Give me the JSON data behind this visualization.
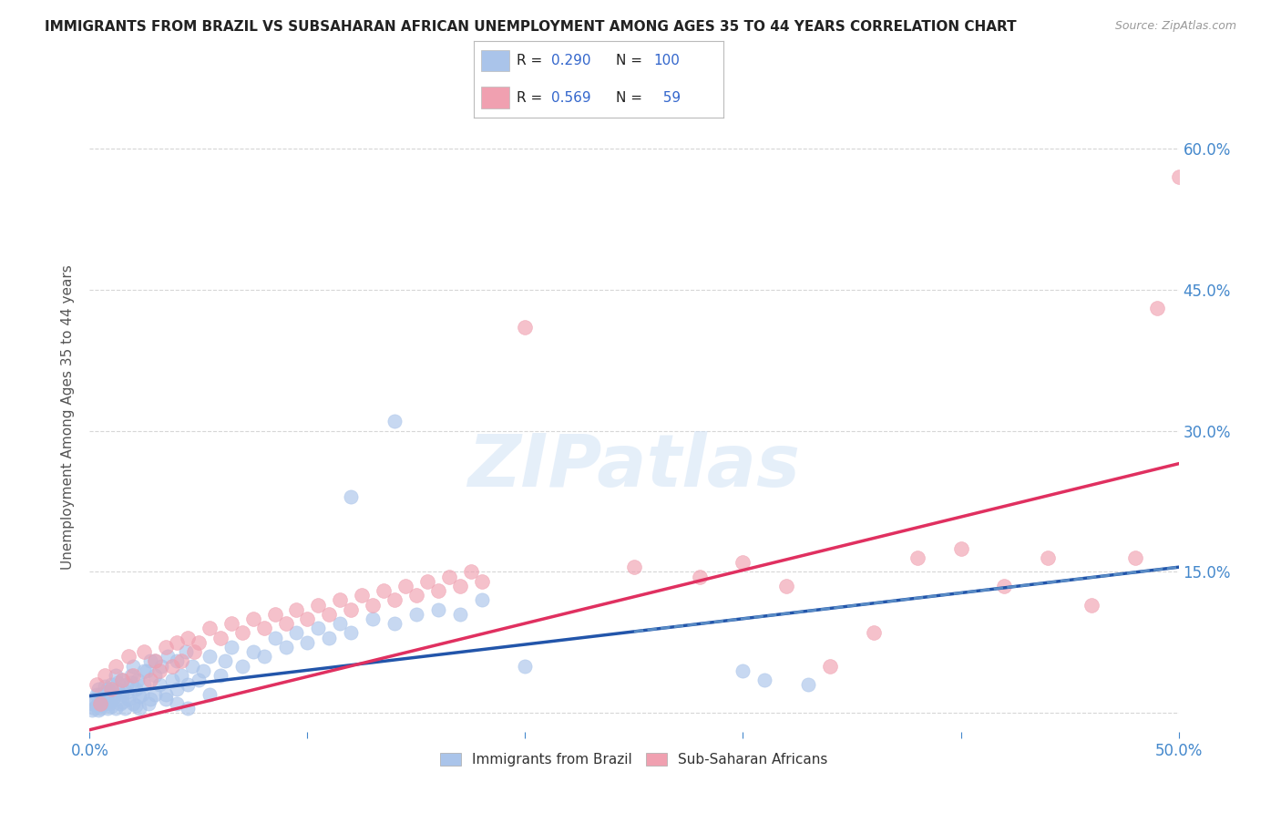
{
  "title": "IMMIGRANTS FROM BRAZIL VS SUBSAHARAN AFRICAN UNEMPLOYMENT AMONG AGES 35 TO 44 YEARS CORRELATION CHART",
  "source": "Source: ZipAtlas.com",
  "ylabel_label": "Unemployment Among Ages 35 to 44 years",
  "xlim": [
    0.0,
    0.5
  ],
  "ylim": [
    -0.02,
    0.65
  ],
  "ylim_display": [
    0.0,
    0.65
  ],
  "xticks": [
    0.0,
    0.1,
    0.2,
    0.3,
    0.4,
    0.5
  ],
  "xticklabels": [
    "0.0%",
    "",
    "",
    "",
    "",
    "50.0%"
  ],
  "yticks": [
    0.0,
    0.15,
    0.3,
    0.45,
    0.6
  ],
  "yticklabels": [
    "",
    "15.0%",
    "30.0%",
    "45.0%",
    "60.0%"
  ],
  "watermark": "ZIPatlas",
  "brazil_color": "#aac4ea",
  "subsaharan_color": "#f0a0b0",
  "brazil_line_color": "#2255aa",
  "subsaharan_line_color": "#e03060",
  "background_color": "#ffffff",
  "grid_color": "#cccccc",
  "title_color": "#222222",
  "title_fontsize": 11,
  "axis_label_color": "#555555",
  "tick_color": "#4488cc",
  "brazil_line": {
    "x0": 0.0,
    "y0": 0.018,
    "x1": 0.5,
    "y1": 0.155
  },
  "subsaharan_line": {
    "x0": 0.0,
    "y0": -0.018,
    "x1": 0.5,
    "y1": 0.265
  },
  "brazil_scatter": [
    [
      0.002,
      0.005
    ],
    [
      0.003,
      0.008
    ],
    [
      0.004,
      0.003
    ],
    [
      0.004,
      0.01
    ],
    [
      0.005,
      0.005
    ],
    [
      0.005,
      0.02
    ],
    [
      0.006,
      0.01
    ],
    [
      0.007,
      0.015
    ],
    [
      0.008,
      0.005
    ],
    [
      0.008,
      0.025
    ],
    [
      0.009,
      0.01
    ],
    [
      0.01,
      0.015
    ],
    [
      0.01,
      0.03
    ],
    [
      0.011,
      0.02
    ],
    [
      0.012,
      0.005
    ],
    [
      0.012,
      0.04
    ],
    [
      0.013,
      0.025
    ],
    [
      0.014,
      0.01
    ],
    [
      0.015,
      0.02
    ],
    [
      0.015,
      0.035
    ],
    [
      0.016,
      0.005
    ],
    [
      0.017,
      0.03
    ],
    [
      0.018,
      0.015
    ],
    [
      0.019,
      0.04
    ],
    [
      0.02,
      0.01
    ],
    [
      0.02,
      0.05
    ],
    [
      0.021,
      0.025
    ],
    [
      0.022,
      0.035
    ],
    [
      0.023,
      0.005
    ],
    [
      0.024,
      0.02
    ],
    [
      0.025,
      0.03
    ],
    [
      0.026,
      0.045
    ],
    [
      0.027,
      0.01
    ],
    [
      0.028,
      0.055
    ],
    [
      0.03,
      0.02
    ],
    [
      0.03,
      0.04
    ],
    [
      0.032,
      0.03
    ],
    [
      0.033,
      0.05
    ],
    [
      0.035,
      0.02
    ],
    [
      0.036,
      0.06
    ],
    [
      0.038,
      0.035
    ],
    [
      0.04,
      0.025
    ],
    [
      0.04,
      0.055
    ],
    [
      0.042,
      0.04
    ],
    [
      0.044,
      0.065
    ],
    [
      0.045,
      0.03
    ],
    [
      0.047,
      0.05
    ],
    [
      0.05,
      0.035
    ],
    [
      0.052,
      0.045
    ],
    [
      0.055,
      0.06
    ],
    [
      0.06,
      0.04
    ],
    [
      0.062,
      0.055
    ],
    [
      0.065,
      0.07
    ],
    [
      0.07,
      0.05
    ],
    [
      0.075,
      0.065
    ],
    [
      0.08,
      0.06
    ],
    [
      0.085,
      0.08
    ],
    [
      0.09,
      0.07
    ],
    [
      0.095,
      0.085
    ],
    [
      0.1,
      0.075
    ],
    [
      0.105,
      0.09
    ],
    [
      0.11,
      0.08
    ],
    [
      0.115,
      0.095
    ],
    [
      0.12,
      0.085
    ],
    [
      0.13,
      0.1
    ],
    [
      0.14,
      0.095
    ],
    [
      0.15,
      0.105
    ],
    [
      0.16,
      0.11
    ],
    [
      0.17,
      0.105
    ],
    [
      0.18,
      0.12
    ],
    [
      0.001,
      0.003
    ],
    [
      0.001,
      0.01
    ],
    [
      0.002,
      0.015
    ],
    [
      0.003,
      0.02
    ],
    [
      0.004,
      0.025
    ],
    [
      0.005,
      0.008
    ],
    [
      0.006,
      0.018
    ],
    [
      0.007,
      0.028
    ],
    [
      0.008,
      0.012
    ],
    [
      0.009,
      0.022
    ],
    [
      0.01,
      0.007
    ],
    [
      0.011,
      0.017
    ],
    [
      0.013,
      0.032
    ],
    [
      0.015,
      0.012
    ],
    [
      0.017,
      0.022
    ],
    [
      0.019,
      0.032
    ],
    [
      0.021,
      0.008
    ],
    [
      0.023,
      0.018
    ],
    [
      0.025,
      0.045
    ],
    [
      0.028,
      0.015
    ],
    [
      0.03,
      0.055
    ],
    [
      0.035,
      0.015
    ],
    [
      0.04,
      0.01
    ],
    [
      0.045,
      0.005
    ],
    [
      0.055,
      0.02
    ],
    [
      0.14,
      0.31
    ],
    [
      0.12,
      0.23
    ],
    [
      0.3,
      0.045
    ],
    [
      0.31,
      0.035
    ],
    [
      0.33,
      0.03
    ],
    [
      0.2,
      0.05
    ]
  ],
  "subsaharan_scatter": [
    [
      0.003,
      0.03
    ],
    [
      0.005,
      0.01
    ],
    [
      0.007,
      0.04
    ],
    [
      0.01,
      0.025
    ],
    [
      0.012,
      0.05
    ],
    [
      0.015,
      0.035
    ],
    [
      0.018,
      0.06
    ],
    [
      0.02,
      0.04
    ],
    [
      0.025,
      0.065
    ],
    [
      0.028,
      0.035
    ],
    [
      0.03,
      0.055
    ],
    [
      0.032,
      0.045
    ],
    [
      0.035,
      0.07
    ],
    [
      0.038,
      0.05
    ],
    [
      0.04,
      0.075
    ],
    [
      0.042,
      0.055
    ],
    [
      0.045,
      0.08
    ],
    [
      0.048,
      0.065
    ],
    [
      0.05,
      0.075
    ],
    [
      0.055,
      0.09
    ],
    [
      0.06,
      0.08
    ],
    [
      0.065,
      0.095
    ],
    [
      0.07,
      0.085
    ],
    [
      0.075,
      0.1
    ],
    [
      0.08,
      0.09
    ],
    [
      0.085,
      0.105
    ],
    [
      0.09,
      0.095
    ],
    [
      0.095,
      0.11
    ],
    [
      0.1,
      0.1
    ],
    [
      0.105,
      0.115
    ],
    [
      0.11,
      0.105
    ],
    [
      0.115,
      0.12
    ],
    [
      0.12,
      0.11
    ],
    [
      0.125,
      0.125
    ],
    [
      0.13,
      0.115
    ],
    [
      0.135,
      0.13
    ],
    [
      0.14,
      0.12
    ],
    [
      0.145,
      0.135
    ],
    [
      0.15,
      0.125
    ],
    [
      0.155,
      0.14
    ],
    [
      0.16,
      0.13
    ],
    [
      0.165,
      0.145
    ],
    [
      0.17,
      0.135
    ],
    [
      0.175,
      0.15
    ],
    [
      0.18,
      0.14
    ],
    [
      0.2,
      0.41
    ],
    [
      0.25,
      0.155
    ],
    [
      0.28,
      0.145
    ],
    [
      0.3,
      0.16
    ],
    [
      0.32,
      0.135
    ],
    [
      0.34,
      0.05
    ],
    [
      0.36,
      0.085
    ],
    [
      0.38,
      0.165
    ],
    [
      0.4,
      0.175
    ],
    [
      0.42,
      0.135
    ],
    [
      0.44,
      0.165
    ],
    [
      0.46,
      0.115
    ],
    [
      0.48,
      0.165
    ],
    [
      0.49,
      0.43
    ],
    [
      0.5,
      0.57
    ]
  ],
  "legend_bottom": [
    {
      "label": "Immigrants from Brazil",
      "color": "#aac4ea"
    },
    {
      "label": "Sub-Saharan Africans",
      "color": "#f0a0b0"
    }
  ]
}
